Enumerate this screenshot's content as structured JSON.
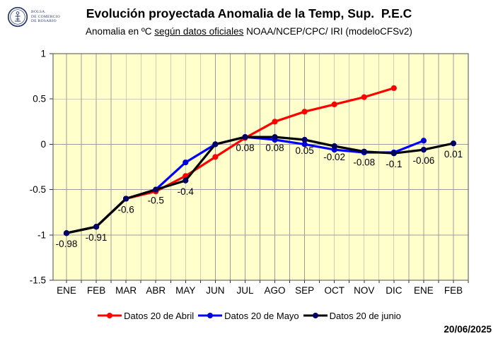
{
  "header": {
    "logo": {
      "line1": "BOLSA",
      "line2": "DE COMERCIO",
      "line3": "DE ROSARIO"
    },
    "title": "Evolución proyectada Anomalia de la Temp, Sup.  P.E.C",
    "subtitle_pre": "Anomalia en ºC ",
    "subtitle_underline": "según datos oficiales",
    "subtitle_post": " NOAA/NCEP/CPC/ IRI (modeloCFSv2)"
  },
  "legend": [
    {
      "label": "Datos 20 de Abril",
      "color": "#ff0000",
      "marker": "#ff0000"
    },
    {
      "label": "Datos 20 de Mayo",
      "color": "#0000ff",
      "marker": "#0000d8"
    },
    {
      "label": "Datos 20 de junio",
      "color": "#000000",
      "marker": "#000066"
    }
  ],
  "footer": {
    "date": "20/06/2025"
  },
  "chart_data": {
    "type": "line",
    "title": "Evolución proyectada Anomalia de la Temp, Sup.  P.E.C",
    "xlabel": "",
    "ylabel": "Anomalia en ºC",
    "categories": [
      "ENE",
      "FEB",
      "MAR",
      "ABR",
      "MAY",
      "JUN",
      "JUL",
      "AGO",
      "SEP",
      "OCT",
      "NOV",
      "DIC",
      "ENE",
      "FEB"
    ],
    "ylim": [
      -1.5,
      1
    ],
    "yticks": [
      1,
      0.5,
      0,
      -0.5,
      -1,
      -1.5
    ],
    "grid": true,
    "legend_position": "bottom",
    "plot_bg": "#ffffcc",
    "grid_color": "#9c9c9c",
    "frame_color": "#4d4d4d",
    "series": [
      {
        "name": "Datos 20 de Abril",
        "color": "#ff0000",
        "marker_color": "#ff0000",
        "values": [
          -0.98,
          -0.91,
          -0.6,
          -0.52,
          -0.35,
          -0.14,
          0.07,
          0.25,
          0.36,
          0.44,
          0.52,
          0.62,
          null,
          null
        ]
      },
      {
        "name": "Datos 20 de Mayo",
        "color": "#0000ff",
        "marker_color": "#0000d8",
        "values": [
          -0.98,
          -0.91,
          -0.6,
          -0.5,
          -0.2,
          0.0,
          0.08,
          0.05,
          0.0,
          -0.06,
          -0.09,
          -0.09,
          0.04,
          null
        ]
      },
      {
        "name": "Datos 20 de junio",
        "color": "#000000",
        "marker_color": "#000066",
        "values": [
          -0.98,
          -0.91,
          -0.6,
          -0.5,
          -0.4,
          0.0,
          0.08,
          0.08,
          0.05,
          -0.02,
          -0.08,
          -0.1,
          -0.06,
          0.01
        ],
        "point_labels": [
          "-0.98",
          "-0.91",
          "-0.6",
          "-0.5",
          "-0.4",
          "",
          "0.08",
          "0.08",
          "0.05",
          "-0.02",
          "-0.08",
          "-0.1",
          "-0.06",
          "0.01"
        ]
      }
    ]
  }
}
